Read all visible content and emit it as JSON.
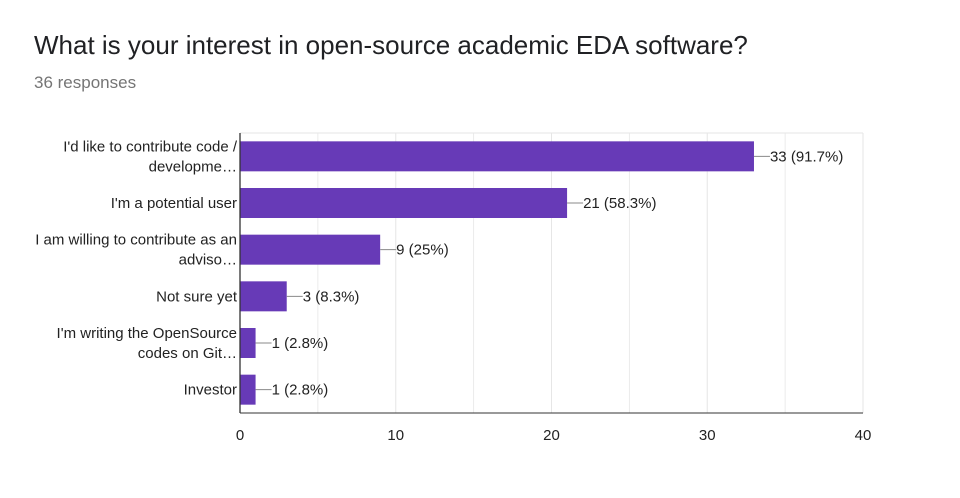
{
  "header": {
    "title": "What is your interest in open-source academic EDA software?",
    "responses": "36 responses"
  },
  "colors": {
    "bar": "#673ab7",
    "grid": "#e6e6e6",
    "axis": "#333333",
    "leader": "#8a8a8a"
  },
  "chart_data": {
    "type": "bar",
    "orientation": "horizontal",
    "categories": [
      [
        "I'd like to contribute code /",
        "developme…"
      ],
      [
        "I'm a potential user"
      ],
      [
        "I am willing to contribute as an",
        "adviso…"
      ],
      [
        "Not sure yet"
      ],
      [
        "I'm writing the OpenSource",
        "codes on Git…"
      ],
      [
        "Investor"
      ]
    ],
    "values": [
      33,
      21,
      9,
      3,
      1,
      1
    ],
    "data_labels": [
      "33 (91.7%)",
      "21 (58.3%)",
      "9 (25%)",
      "3 (8.3%)",
      "1 (2.8%)",
      "1 (2.8%)"
    ],
    "xlim": [
      0,
      40
    ],
    "xticks": [
      0,
      10,
      20,
      30,
      40
    ],
    "grid": true,
    "legend": "none"
  }
}
